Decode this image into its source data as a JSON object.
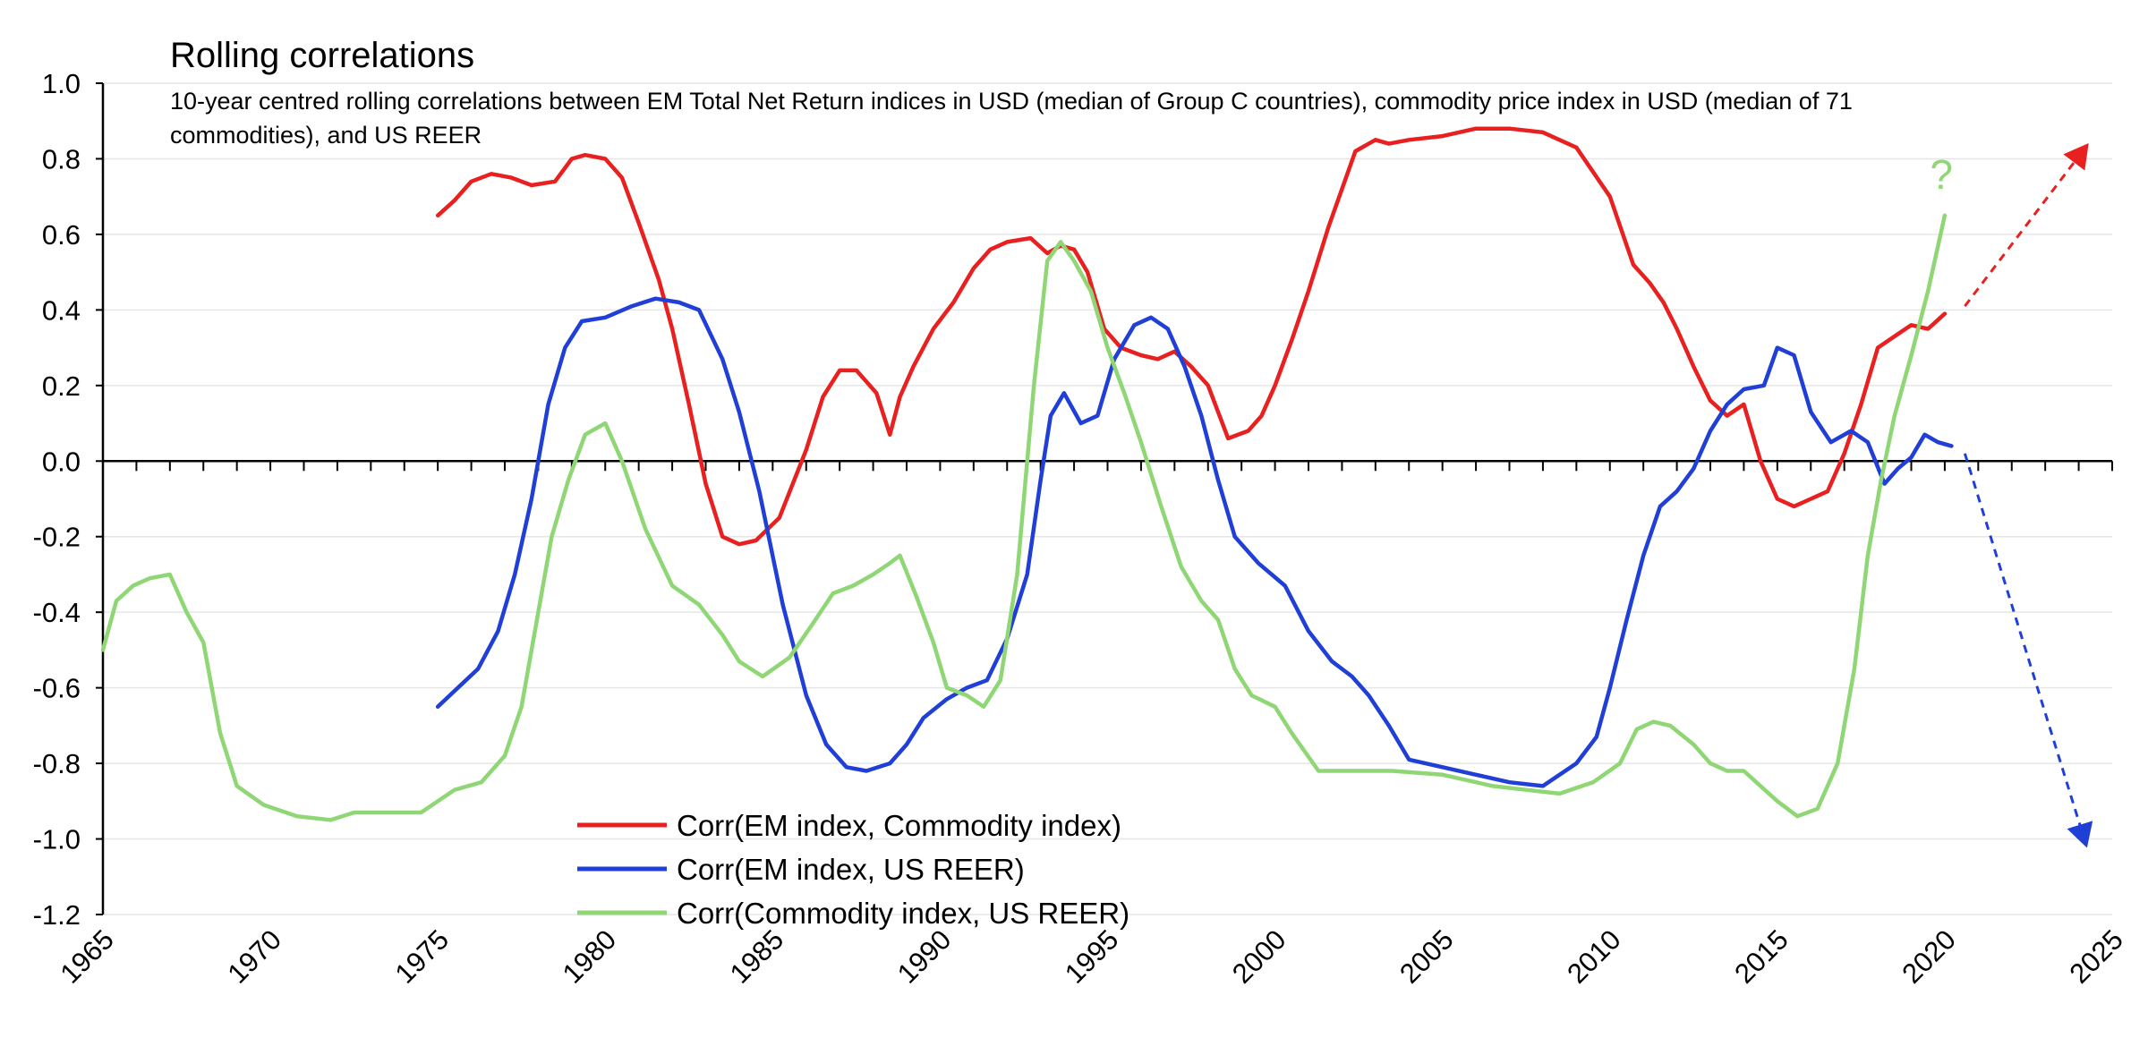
{
  "chart_data": {
    "type": "line",
    "title": "Rolling correlations",
    "subtitle_lines": [
      "10-year centred rolling correlations between EM Total Net Return indices in USD (median of Group C countries), commodity price index in USD (median of 71",
      "commodities), and US REER"
    ],
    "xlabel": "",
    "ylabel": "",
    "xlim": [
      1965,
      2025
    ],
    "ylim": [
      -1.2,
      1.0
    ],
    "x_ticks": [
      1965,
      1970,
      1975,
      1980,
      1985,
      1990,
      1995,
      2000,
      2005,
      2010,
      2015,
      2020,
      2025
    ],
    "x_tick_labels": [
      "1965",
      "1970",
      "1975",
      "1980",
      "1985",
      "1990",
      "1995",
      "2000",
      "2005",
      "2010",
      "2015",
      "2020",
      "2025"
    ],
    "y_ticks": [
      1.0,
      0.8,
      0.6,
      0.4,
      0.2,
      0.0,
      -0.2,
      -0.4,
      -0.6,
      -0.8,
      -1.0,
      -1.2
    ],
    "y_tick_labels": [
      "1.0",
      "0.8",
      "0.6",
      "0.4",
      "0.2",
      "0.0",
      "-0.2",
      "-0.4",
      "-0.6",
      "-0.8",
      "-1.0",
      "-1.2"
    ],
    "grid": true,
    "legend_position": "bottom-left",
    "series": [
      {
        "name": "Corr(EM index, Commodity index)",
        "color": "#e8201f",
        "x": [
          1975.0,
          1975.5,
          1976.0,
          1976.6,
          1977.2,
          1977.8,
          1978.5,
          1979.0,
          1979.4,
          1980.0,
          1980.5,
          1981.0,
          1981.6,
          1982.0,
          1982.5,
          1983.0,
          1983.5,
          1984.0,
          1984.5,
          1985.2,
          1986.0,
          1986.5,
          1987.0,
          1987.5,
          1988.1,
          1988.5,
          1988.8,
          1989.2,
          1989.8,
          1990.4,
          1991.0,
          1991.5,
          1992.0,
          1992.7,
          1993.2,
          1993.6,
          1994.0,
          1994.4,
          1994.9,
          1995.4,
          1996.0,
          1996.5,
          1997.0,
          1997.5,
          1998.0,
          1998.6,
          1999.2,
          1999.6,
          2000.0,
          2000.5,
          2001.0,
          2001.6,
          2002.4,
          2003.0,
          2003.4,
          2004.0,
          2005.0,
          2006.0,
          2007.0,
          2008.0,
          2009.0,
          2010.0,
          2010.7,
          2011.2,
          2011.6,
          2012.0,
          2012.5,
          2013.0,
          2013.5,
          2014.0,
          2014.5,
          2015.0,
          2015.5,
          2016.0,
          2016.5,
          2017.0,
          2017.5,
          2018.0,
          2018.5,
          2019.0,
          2019.5,
          2020.0
        ],
        "values": [
          0.65,
          0.69,
          0.74,
          0.76,
          0.75,
          0.73,
          0.74,
          0.8,
          0.81,
          0.8,
          0.75,
          0.63,
          0.48,
          0.35,
          0.15,
          -0.06,
          -0.2,
          -0.22,
          -0.21,
          -0.15,
          0.03,
          0.17,
          0.24,
          0.24,
          0.18,
          0.07,
          0.17,
          0.25,
          0.35,
          0.42,
          0.51,
          0.56,
          0.58,
          0.59,
          0.55,
          0.57,
          0.56,
          0.5,
          0.35,
          0.3,
          0.28,
          0.27,
          0.29,
          0.25,
          0.2,
          0.06,
          0.08,
          0.12,
          0.2,
          0.32,
          0.45,
          0.62,
          0.82,
          0.85,
          0.84,
          0.85,
          0.86,
          0.88,
          0.88,
          0.87,
          0.83,
          0.7,
          0.52,
          0.47,
          0.42,
          0.35,
          0.25,
          0.16,
          0.12,
          0.15,
          0.0,
          -0.1,
          -0.12,
          -0.1,
          -0.08,
          0.02,
          0.15,
          0.3,
          0.33,
          0.36,
          0.35,
          0.39
        ]
      },
      {
        "name": "Corr(EM index, US REER)",
        "color": "#1f3fd6",
        "x": [
          1975.0,
          1975.6,
          1976.2,
          1976.8,
          1977.3,
          1977.8,
          1978.3,
          1978.8,
          1979.3,
          1980.0,
          1980.8,
          1981.5,
          1982.2,
          1982.8,
          1983.5,
          1984.0,
          1984.6,
          1985.3,
          1986.0,
          1986.6,
          1987.2,
          1987.8,
          1988.5,
          1989.0,
          1989.5,
          1990.2,
          1990.8,
          1991.4,
          1992.0,
          1992.6,
          1993.0,
          1993.3,
          1993.7,
          1994.2,
          1994.7,
          1995.2,
          1995.8,
          1996.3,
          1996.8,
          1997.3,
          1997.8,
          1998.3,
          1998.8,
          1999.5,
          2000.3,
          2001.0,
          2001.7,
          2002.3,
          2002.8,
          2003.4,
          2004.0,
          2005.0,
          2006.0,
          2007.0,
          2008.0,
          2009.0,
          2009.6,
          2010.0,
          2010.5,
          2011.0,
          2011.5,
          2012.0,
          2012.5,
          2013.0,
          2013.5,
          2014.0,
          2014.6,
          2015.0,
          2015.5,
          2016.0,
          2016.6,
          2017.2,
          2017.7,
          2018.2,
          2018.6,
          2019.0,
          2019.4,
          2019.8,
          2020.2
        ],
        "values": [
          -0.65,
          -0.6,
          -0.55,
          -0.45,
          -0.3,
          -0.1,
          0.15,
          0.3,
          0.37,
          0.38,
          0.41,
          0.43,
          0.42,
          0.4,
          0.27,
          0.13,
          -0.08,
          -0.38,
          -0.62,
          -0.75,
          -0.81,
          -0.82,
          -0.8,
          -0.75,
          -0.68,
          -0.63,
          -0.6,
          -0.58,
          -0.47,
          -0.3,
          -0.05,
          0.12,
          0.18,
          0.1,
          0.12,
          0.27,
          0.36,
          0.38,
          0.35,
          0.25,
          0.12,
          -0.05,
          -0.2,
          -0.27,
          -0.33,
          -0.45,
          -0.53,
          -0.57,
          -0.62,
          -0.7,
          -0.79,
          -0.81,
          -0.83,
          -0.85,
          -0.86,
          -0.8,
          -0.73,
          -0.6,
          -0.42,
          -0.25,
          -0.12,
          -0.08,
          -0.02,
          0.08,
          0.15,
          0.19,
          0.2,
          0.3,
          0.28,
          0.13,
          0.05,
          0.08,
          0.05,
          -0.06,
          -0.02,
          0.01,
          0.07,
          0.05,
          0.04
        ]
      },
      {
        "name": "Corr(Commodity index, US REER)",
        "color": "#8fd675",
        "x": [
          1965.0,
          1965.4,
          1965.9,
          1966.4,
          1967.0,
          1967.5,
          1968.0,
          1968.5,
          1969.0,
          1969.8,
          1970.8,
          1971.8,
          1972.5,
          1973.5,
          1974.5,
          1975.0,
          1975.5,
          1976.3,
          1977.0,
          1977.5,
          1978.0,
          1978.4,
          1978.9,
          1979.4,
          1980.0,
          1980.5,
          1981.2,
          1982.0,
          1982.8,
          1983.5,
          1984.0,
          1984.7,
          1985.5,
          1986.2,
          1986.8,
          1987.4,
          1988.0,
          1988.5,
          1988.8,
          1989.3,
          1989.8,
          1990.2,
          1990.8,
          1991.3,
          1991.8,
          1992.3,
          1992.8,
          1993.2,
          1993.6,
          1994.0,
          1994.5,
          1995.0,
          1995.5,
          1996.0,
          1996.6,
          1997.2,
          1997.8,
          1998.3,
          1998.8,
          1999.3,
          2000.0,
          2000.5,
          2001.3,
          2002.5,
          2003.5,
          2005.0,
          2006.5,
          2007.5,
          2008.5,
          2009.5,
          2010.3,
          2010.8,
          2011.3,
          2011.8,
          2012.5,
          2013.0,
          2013.5,
          2014.0,
          2014.5,
          2015.0,
          2015.6,
          2016.2,
          2016.8,
          2017.3,
          2017.7,
          2018.1,
          2018.5,
          2019.0,
          2019.5,
          2020.0
        ],
        "values": [
          -0.5,
          -0.37,
          -0.33,
          -0.31,
          -0.3,
          -0.4,
          -0.48,
          -0.72,
          -0.86,
          -0.91,
          -0.94,
          -0.95,
          -0.93,
          -0.93,
          -0.93,
          -0.9,
          -0.87,
          -0.85,
          -0.78,
          -0.65,
          -0.4,
          -0.2,
          -0.05,
          0.07,
          0.1,
          0.0,
          -0.18,
          -0.33,
          -0.38,
          -0.46,
          -0.53,
          -0.57,
          -0.52,
          -0.43,
          -0.35,
          -0.33,
          -0.3,
          -0.27,
          -0.25,
          -0.36,
          -0.48,
          -0.6,
          -0.62,
          -0.65,
          -0.58,
          -0.3,
          0.2,
          0.53,
          0.58,
          0.53,
          0.45,
          0.3,
          0.18,
          0.05,
          -0.12,
          -0.28,
          -0.37,
          -0.42,
          -0.55,
          -0.62,
          -0.65,
          -0.72,
          -0.82,
          -0.82,
          -0.82,
          -0.83,
          -0.86,
          -0.87,
          -0.88,
          -0.85,
          -0.8,
          -0.71,
          -0.69,
          -0.7,
          -0.75,
          -0.8,
          -0.82,
          -0.82,
          -0.86,
          -0.9,
          -0.94,
          -0.92,
          -0.8,
          -0.55,
          -0.25,
          -0.05,
          0.12,
          0.28,
          0.45,
          0.65
        ]
      }
    ],
    "annotations": [
      {
        "text": "?",
        "x": 2019.9,
        "y": 0.72,
        "color": "#8fd675"
      },
      {
        "type": "dashed-arrow",
        "color": "#e8201f",
        "from": [
          2020.6,
          0.41
        ],
        "to": [
          2024.2,
          0.83
        ]
      },
      {
        "type": "dashed-arrow",
        "color": "#1f3fd6",
        "from": [
          2020.6,
          0.02
        ],
        "to": [
          2024.2,
          -1.01
        ]
      }
    ]
  }
}
